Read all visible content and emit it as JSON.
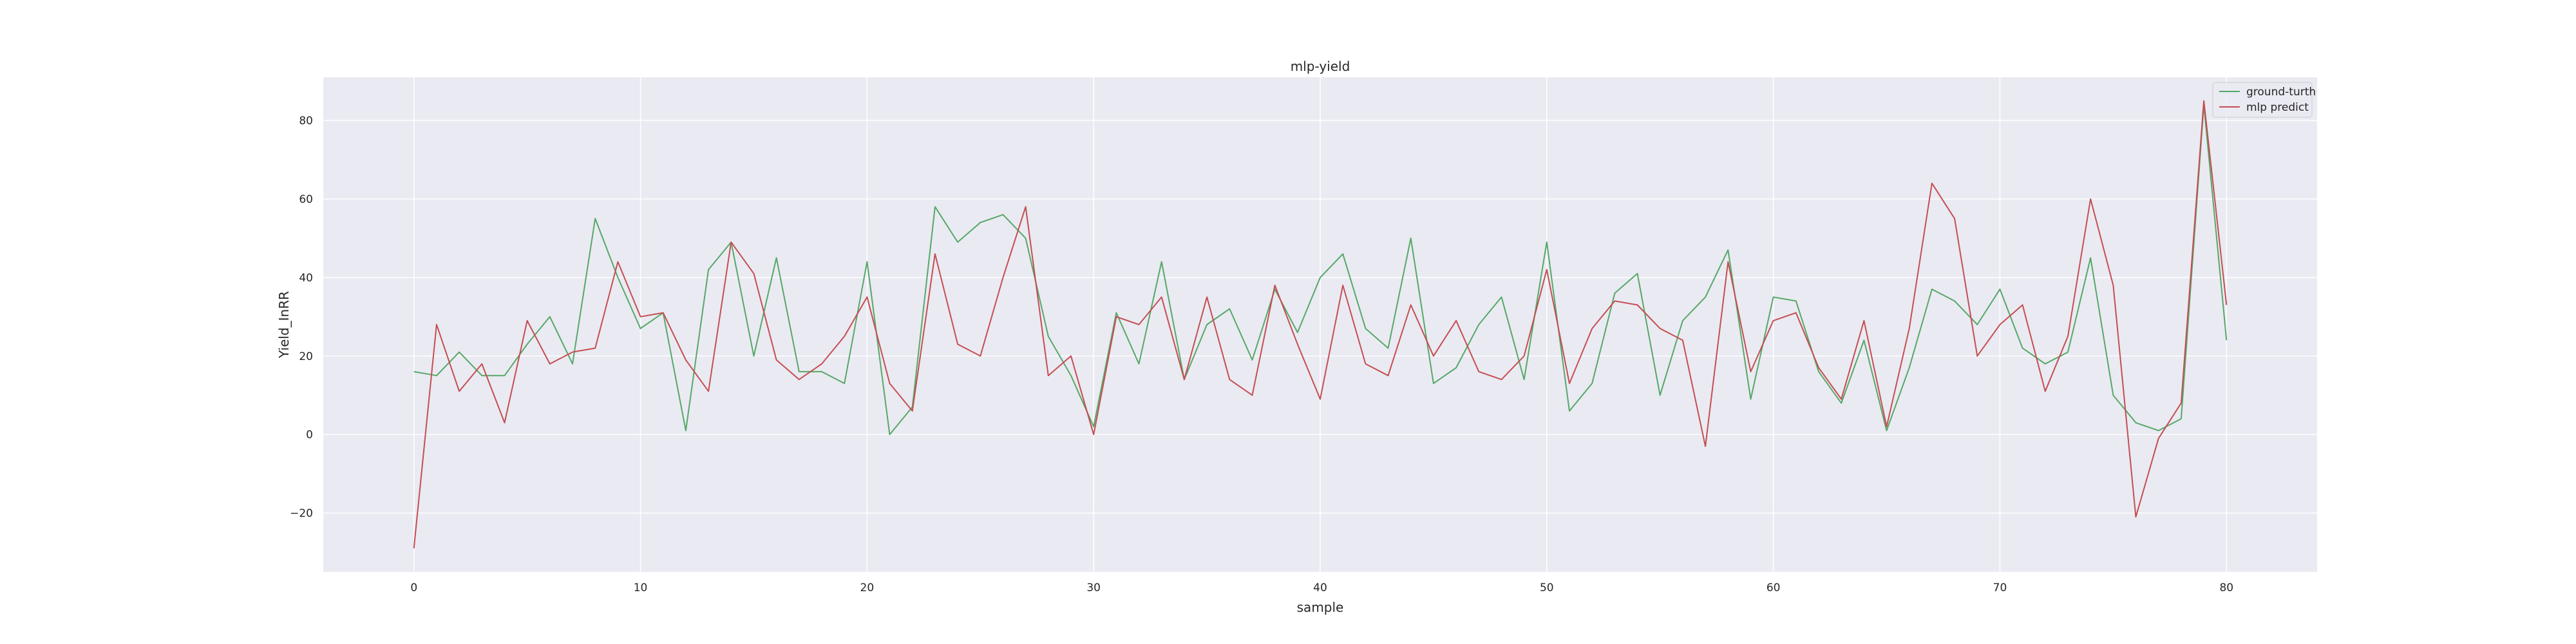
{
  "chart_data": {
    "type": "line",
    "title": "mlp-yield",
    "xlabel": "sample",
    "ylabel": "Yield_InRR",
    "xlim": [
      -4,
      84
    ],
    "ylim": [
      -35,
      91
    ],
    "xticks": [
      0,
      10,
      20,
      30,
      40,
      50,
      60,
      70,
      80
    ],
    "yticks": [
      -20,
      0,
      20,
      40,
      60,
      80
    ],
    "xtick_labels": [
      "0",
      "10",
      "20",
      "30",
      "40",
      "50",
      "60",
      "70",
      "80"
    ],
    "ytick_labels": [
      "−20",
      "0",
      "20",
      "40",
      "60",
      "80"
    ],
    "grid": true,
    "legend_position": "top-right",
    "background": "#eaeaf2",
    "series": [
      {
        "name": "ground-turth",
        "color": "#55a868",
        "values": [
          16,
          15,
          21,
          15,
          15,
          23,
          30,
          18,
          55,
          40,
          27,
          31,
          1,
          42,
          49,
          20,
          45,
          16,
          16,
          13,
          44,
          0,
          7,
          58,
          49,
          54,
          56,
          50,
          25,
          15,
          2,
          31,
          18,
          44,
          14,
          28,
          32,
          19,
          37,
          26,
          40,
          46,
          27,
          22,
          50,
          13,
          17,
          28,
          35,
          14,
          49,
          6,
          13,
          36,
          41,
          10,
          29,
          35,
          47,
          9,
          35,
          34,
          16,
          8,
          24,
          1,
          17,
          37,
          34,
          28,
          37,
          22,
          18,
          21,
          45,
          10,
          3,
          1,
          4,
          84,
          24
        ]
      },
      {
        "name": "mlp predict",
        "color": "#c44e52",
        "values": [
          -29,
          28,
          11,
          18,
          3,
          29,
          18,
          21,
          22,
          44,
          30,
          31,
          19,
          11,
          49,
          41,
          19,
          14,
          18,
          25,
          35,
          13,
          6,
          46,
          23,
          20,
          40,
          58,
          15,
          20,
          0,
          30,
          28,
          35,
          14,
          35,
          14,
          10,
          38,
          23,
          9,
          38,
          18,
          15,
          33,
          20,
          29,
          16,
          14,
          20,
          42,
          13,
          27,
          34,
          33,
          27,
          24,
          -3,
          44,
          16,
          29,
          31,
          17,
          9,
          29,
          2,
          27,
          64,
          55,
          20,
          28,
          33,
          11,
          25,
          60,
          38,
          -21,
          -1,
          8,
          85,
          33
        ]
      }
    ]
  }
}
